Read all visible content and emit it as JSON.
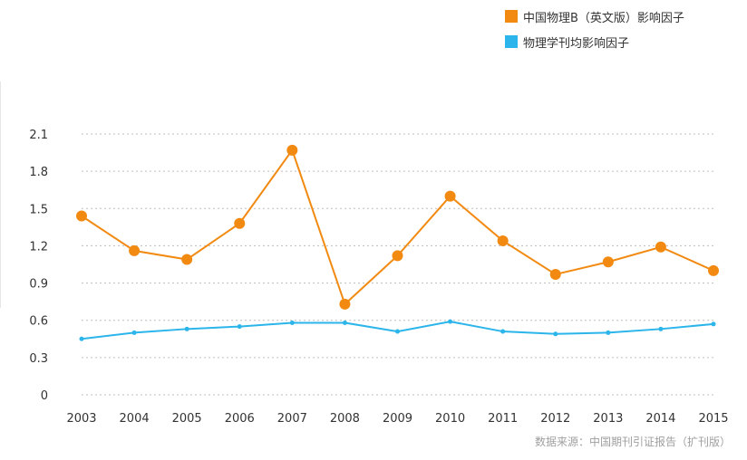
{
  "chart_data": {
    "type": "line",
    "categories": [
      "2003",
      "2004",
      "2005",
      "2006",
      "2007",
      "2008",
      "2009",
      "2010",
      "2011",
      "2012",
      "2013",
      "2014",
      "2015"
    ],
    "yticks": [
      "0",
      "0.3",
      "0.6",
      "0.9",
      "1.2",
      "1.5",
      "1.8",
      "2.1"
    ],
    "ylim": [
      0,
      2.1
    ],
    "grid": true,
    "legend_position": "top-right",
    "series": [
      {
        "name": "中国物理B（英文版）影响因子",
        "color": "#f28a12",
        "values": [
          1.44,
          1.16,
          1.09,
          1.38,
          1.97,
          0.73,
          1.12,
          1.6,
          1.24,
          0.97,
          1.07,
          1.19,
          1.0
        ]
      },
      {
        "name": "物理学刊均影响因子",
        "color": "#2bb5ea",
        "values": [
          0.45,
          0.5,
          0.53,
          0.55,
          0.58,
          0.58,
          0.51,
          0.59,
          0.51,
          0.49,
          0.5,
          0.53,
          0.57
        ]
      }
    ]
  },
  "source_text": "数据来源：中国期刊引证报告（扩刊版）"
}
